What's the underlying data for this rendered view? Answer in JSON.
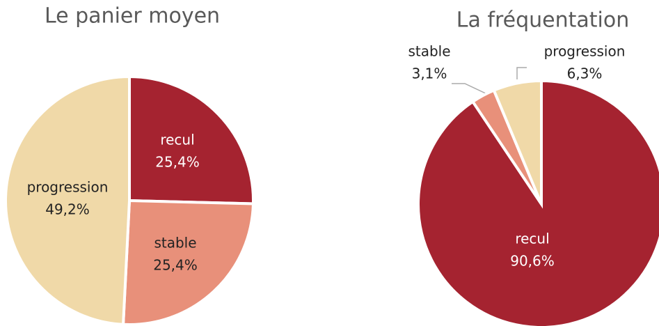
{
  "chart_data": [
    {
      "type": "pie",
      "title": "Le panier moyen",
      "categories": [
        "recul",
        "stable",
        "progression"
      ],
      "values": [
        25.4,
        25.4,
        49.2
      ],
      "value_labels": [
        "25,4%",
        "25,4%",
        "49,2%"
      ],
      "colors": [
        "#a52330",
        "#e8907a",
        "#f0d9a8"
      ]
    },
    {
      "type": "pie",
      "title": "La fréquentation",
      "categories": [
        "recul",
        "stable",
        "progression"
      ],
      "values": [
        90.6,
        3.1,
        6.3
      ],
      "value_labels": [
        "90,6%",
        "3,1%",
        "6,3%"
      ],
      "colors": [
        "#a52330",
        "#e8907a",
        "#f0d9a8"
      ]
    }
  ]
}
